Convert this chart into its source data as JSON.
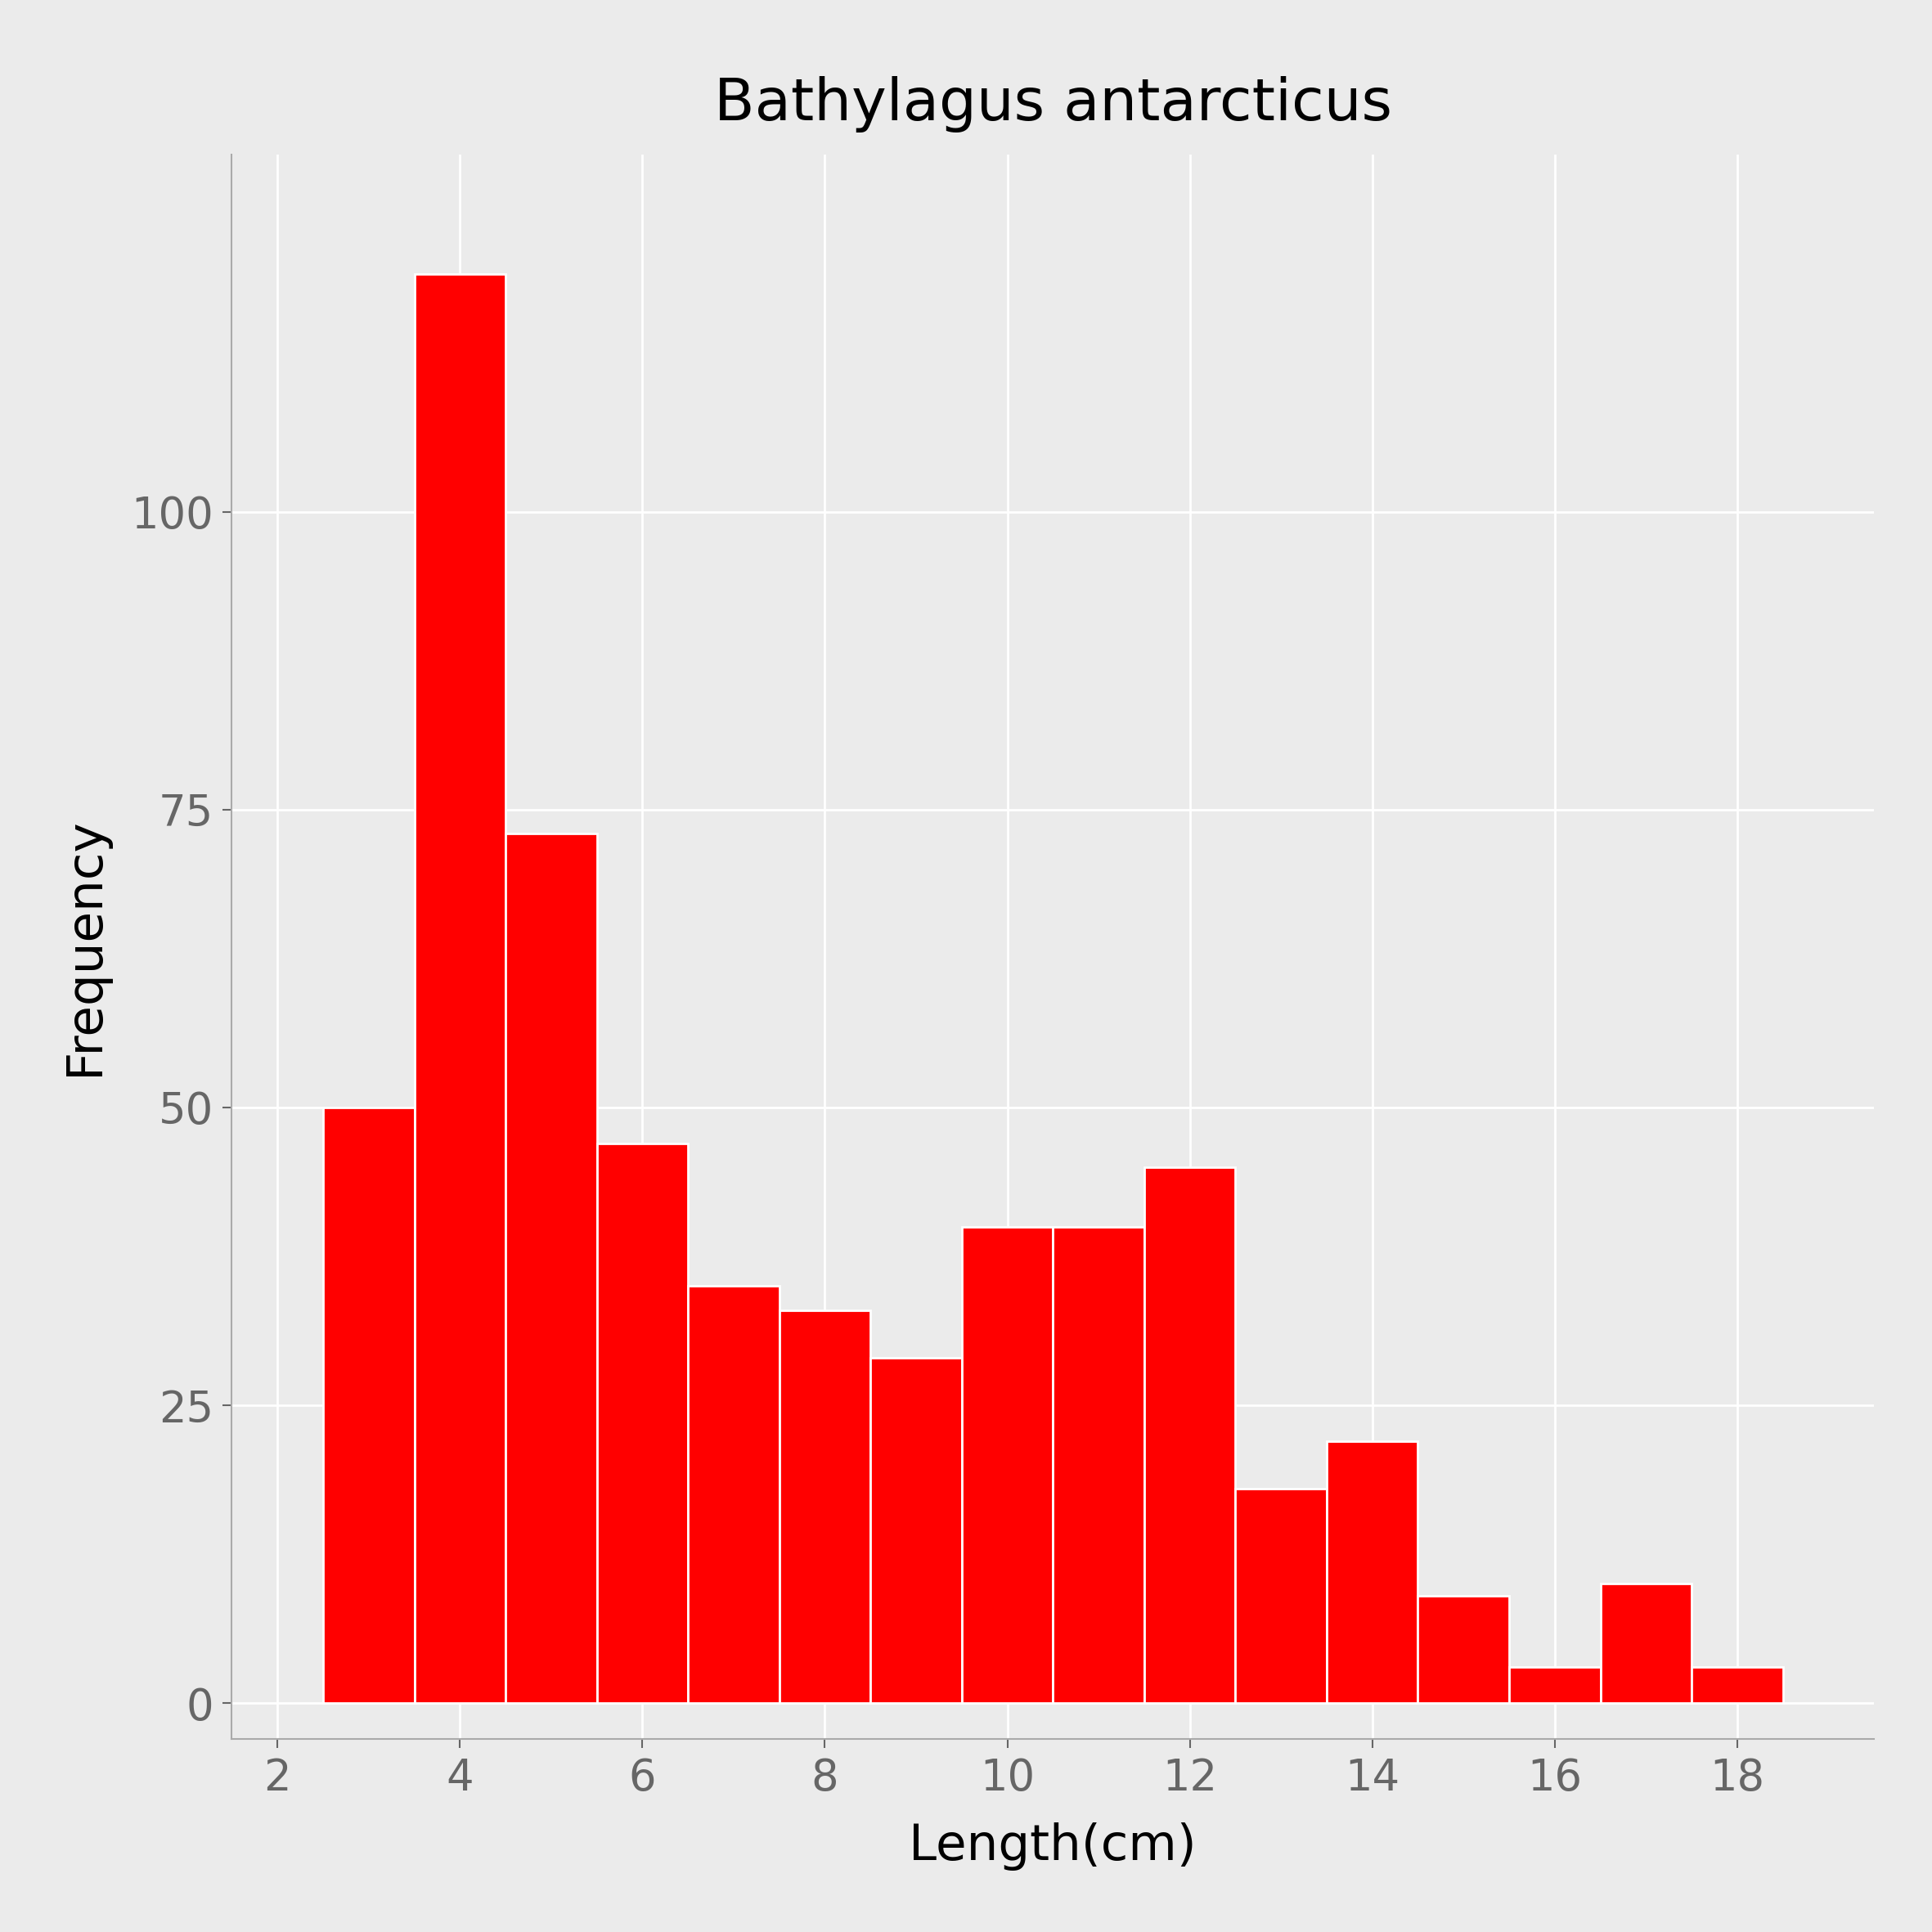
{
  "title": "Bathylagus antarcticus",
  "xlabel": "Length(cm)",
  "ylabel": "Frequency",
  "bar_centers": [
    3,
    4,
    5,
    6,
    7,
    8,
    9,
    10,
    11,
    12,
    13,
    14,
    15,
    16,
    17,
    18
  ],
  "bar_heights": [
    50,
    120,
    73,
    47,
    35,
    33,
    29,
    40,
    40,
    45,
    18,
    22,
    9,
    3,
    10,
    3
  ],
  "bar_width": 1.0,
  "bar_color": "#FF0000",
  "bar_edge_color": "#FFFFFF",
  "bar_edge_width": 2.0,
  "plot_bg_color": "#EBEBEB",
  "fig_bg_color": "#EBEBEB",
  "grid_color": "#FFFFFF",
  "xlim": [
    1.5,
    19.5
  ],
  "ylim": [
    -3,
    130
  ],
  "xticks": [
    2,
    4,
    6,
    8,
    10,
    12,
    14,
    16,
    18
  ],
  "yticks": [
    0,
    25,
    50,
    75,
    100
  ],
  "title_fontsize": 52,
  "axis_label_fontsize": 44,
  "tick_fontsize": 38,
  "tick_color": "#666666",
  "label_color": "#000000",
  "title_color": "#000000"
}
